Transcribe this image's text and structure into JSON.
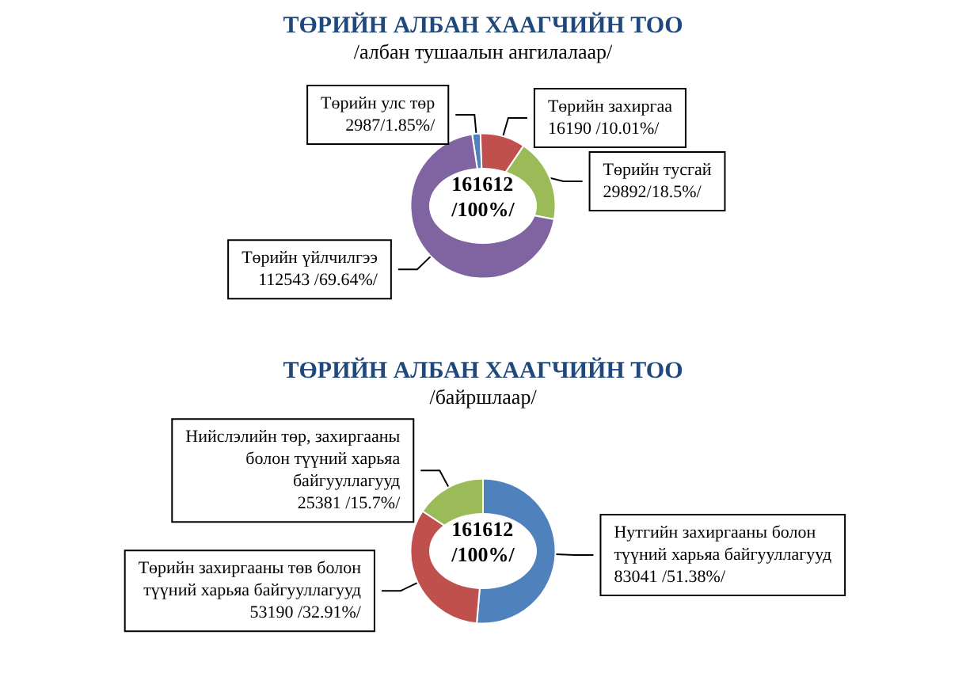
{
  "chart_data": [
    {
      "type": "donut",
      "title": "ТӨРИЙН АЛБАН ХААГЧИЙН ТОО",
      "subtitle": "/албан тушаалын ангилалаар/",
      "categories": [
        "Төрийн улс төр",
        "Төрийн захиргаа",
        "Төрийн тусгай",
        "Төрийн үйлчилгээ"
      ],
      "values": [
        2987,
        16190,
        29892,
        112543
      ],
      "value_labels": [
        "2987/1.85%/",
        "16190 /10.01%/",
        "29892/18.5%/",
        "112543 /69.64%/"
      ],
      "colors": [
        "#4f81bd",
        "#c0504d",
        "#9bbb59",
        "#8064a2"
      ],
      "annotations": [
        "161612 /100%/"
      ]
    },
    {
      "type": "donut",
      "title": "ТӨРИЙН АЛБАН ХААГЧИЙН ТОО",
      "subtitle": "/байршлаар/",
      "categories": [
        "Нутгийн захиргааны болон түүний харьяа байгууллагууд",
        "Төрийн захиргааны төв болон түүний харьяа байгууллагууд",
        "Нийслэлийн төр, захиргааны болон түүний харьяа байгууллагууд"
      ],
      "values": [
        83041,
        53190,
        25381
      ],
      "value_labels": [
        "83041 /51.38%/",
        "53190 /32.91%/",
        "25381 /15.7%/"
      ],
      "colors": [
        "#4f81bd",
        "#c0504d",
        "#9bbb59"
      ],
      "annotations": [
        "161612 /100%/"
      ]
    }
  ]
}
